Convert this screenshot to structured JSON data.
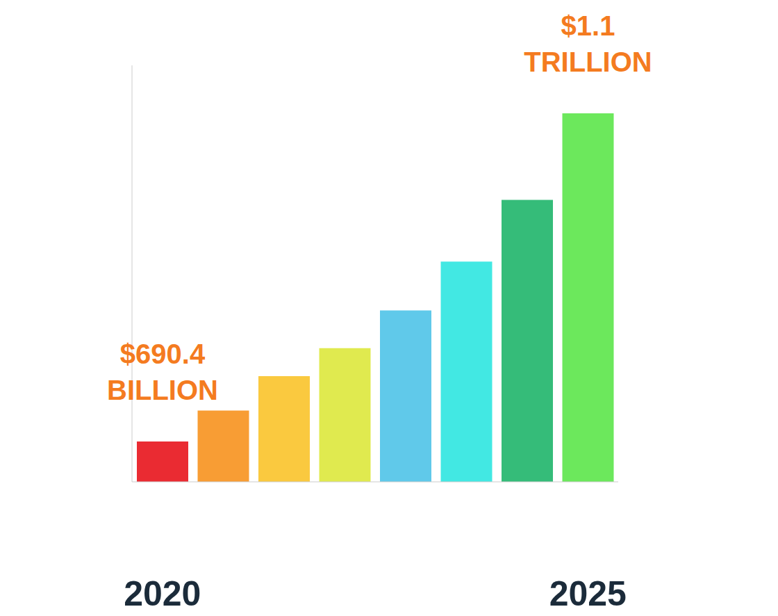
{
  "chart_data": {
    "type": "bar",
    "categories": [
      "2020",
      null,
      null,
      null,
      null,
      null,
      null,
      "2025"
    ],
    "values": [
      690.4,
      729,
      772,
      807,
      854,
      915,
      992,
      1100
    ],
    "value_labels": [
      "$690.4 BILLION",
      null,
      null,
      null,
      null,
      null,
      null,
      "$1.1 TRILLION"
    ],
    "colors": [
      "#e8141c",
      "#f7921e",
      "#f9c32a",
      "#dde83c",
      "#4fc3e8",
      "#2ee6e0",
      "#1fb56a",
      "#5ce64a"
    ],
    "ylim": [
      640,
      1160
    ],
    "data_labels": true,
    "tick_labels": "x",
    "grid": false
  }
}
